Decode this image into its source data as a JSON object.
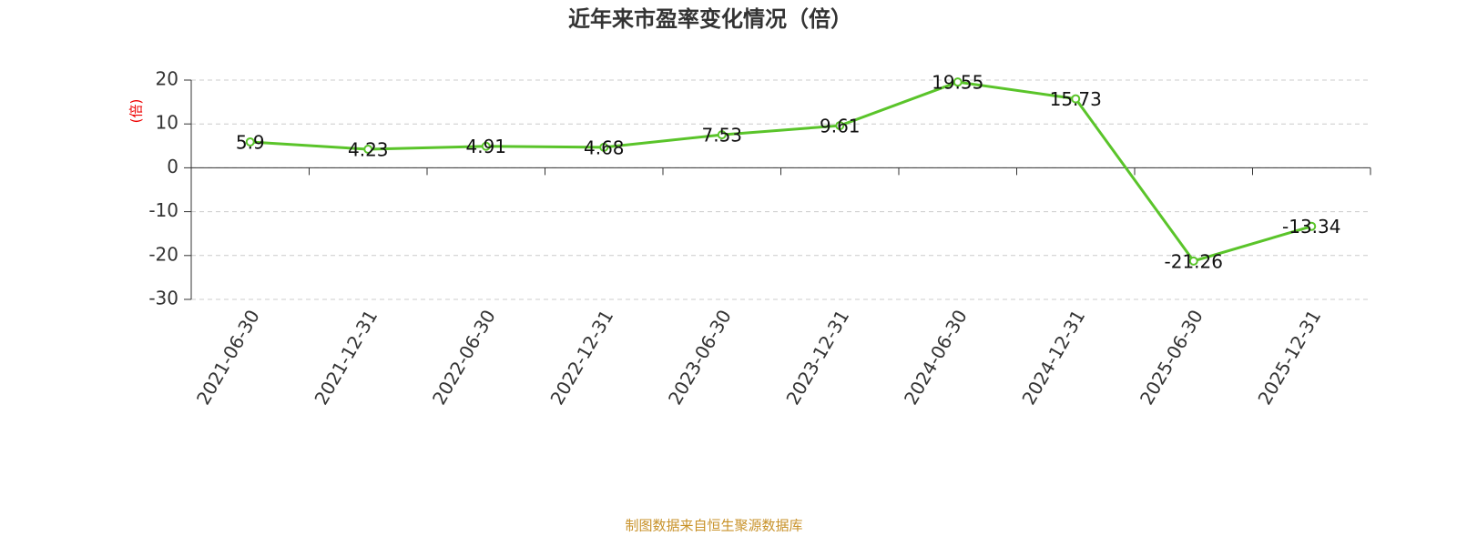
{
  "chart_data": {
    "type": "line",
    "title": "近年来市盈率变化情况（倍）",
    "y_label": "(倍)",
    "categories": [
      "2021-06-30",
      "2021-12-31",
      "2022-06-30",
      "2022-12-31",
      "2023-06-30",
      "2023-12-31",
      "2024-06-30",
      "2024-12-31",
      "2025-06-30",
      "2025-12-31"
    ],
    "values": [
      5.9,
      4.23,
      4.91,
      4.68,
      7.53,
      9.61,
      19.55,
      15.73,
      -21.26,
      -13.34
    ],
    "color": "#5ac42a",
    "ylim": [
      -30,
      20
    ],
    "yticks": [
      -30,
      -20,
      -10,
      0,
      10,
      20
    ],
    "grid": true,
    "source": "制图数据来自恒生聚源数据库"
  }
}
